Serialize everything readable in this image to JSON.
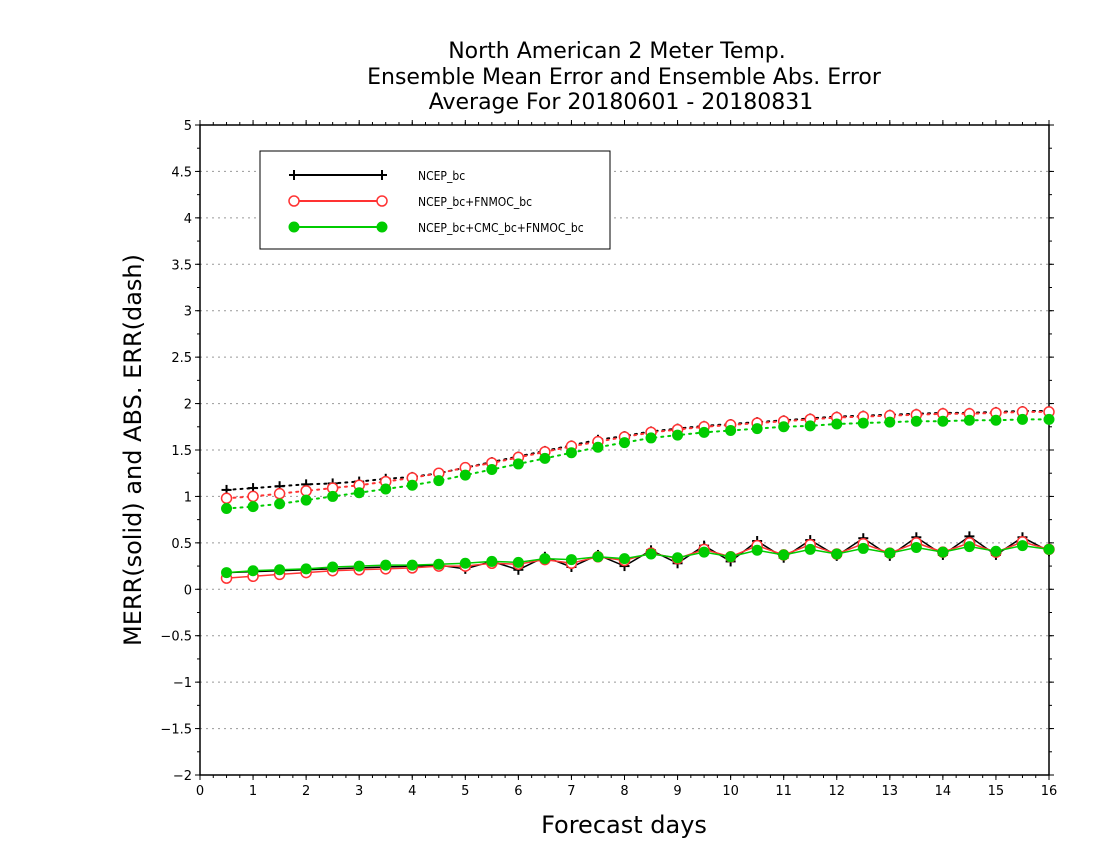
{
  "chart_data": {
    "type": "line",
    "title": [
      "North American 2 Meter Temp.",
      "Ensemble Mean Error and Ensemble Abs. Error",
      "Average For 20180601 - 20180831"
    ],
    "xlabel": "Forecast days",
    "ylabel": "MERR(solid) and ABS. ERR(dash)",
    "xlim": [
      0,
      16
    ],
    "ylim": [
      -2,
      5
    ],
    "xticks": [
      "0",
      "1",
      "2",
      "3",
      "4",
      "5",
      "6",
      "7",
      "8",
      "9",
      "10",
      "11",
      "12",
      "13",
      "14",
      "15",
      "16"
    ],
    "yticks": [
      "-2",
      "-1.5",
      "-1",
      "-0.5",
      "0",
      "0.5",
      "1",
      "1.5",
      "2",
      "2.5",
      "3",
      "3.5",
      "4",
      "4.5",
      "5"
    ],
    "grid": "horizontal dotted",
    "legend_position": "top-left",
    "x": [
      0.5,
      1,
      1.5,
      2,
      2.5,
      3,
      3.5,
      4,
      4.5,
      5,
      5.5,
      6,
      6.5,
      7,
      7.5,
      8,
      8.5,
      9,
      9.5,
      10,
      10.5,
      11,
      11.5,
      12,
      12.5,
      13,
      13.5,
      14,
      14.5,
      15,
      15.5,
      16
    ],
    "series": [
      {
        "name": "NCEP_bc",
        "color": "#000000",
        "marker": "plus",
        "abs_err": [
          1.07,
          1.09,
          1.11,
          1.13,
          1.14,
          1.16,
          1.19,
          1.21,
          1.25,
          1.31,
          1.37,
          1.43,
          1.49,
          1.55,
          1.61,
          1.65,
          1.7,
          1.73,
          1.76,
          1.78,
          1.8,
          1.82,
          1.84,
          1.86,
          1.87,
          1.88,
          1.89,
          1.9,
          1.9,
          1.91,
          1.92,
          1.92
        ],
        "mean_err": [
          0.18,
          0.19,
          0.2,
          0.21,
          0.22,
          0.23,
          0.24,
          0.25,
          0.26,
          0.22,
          0.3,
          0.21,
          0.35,
          0.24,
          0.37,
          0.25,
          0.42,
          0.28,
          0.47,
          0.3,
          0.52,
          0.34,
          0.53,
          0.36,
          0.55,
          0.36,
          0.56,
          0.37,
          0.57,
          0.37,
          0.56,
          0.41
        ]
      },
      {
        "name": "NCEP_bc+FNMOC_bc",
        "color": "#ff3333",
        "marker": "open-circle",
        "abs_err": [
          0.98,
          1.0,
          1.03,
          1.06,
          1.09,
          1.12,
          1.16,
          1.2,
          1.25,
          1.31,
          1.36,
          1.42,
          1.48,
          1.54,
          1.59,
          1.64,
          1.69,
          1.72,
          1.75,
          1.77,
          1.79,
          1.81,
          1.83,
          1.85,
          1.86,
          1.87,
          1.88,
          1.89,
          1.89,
          1.9,
          1.91,
          1.91
        ],
        "mean_err": [
          0.12,
          0.14,
          0.16,
          0.18,
          0.2,
          0.21,
          0.22,
          0.23,
          0.25,
          0.25,
          0.28,
          0.27,
          0.32,
          0.28,
          0.35,
          0.31,
          0.39,
          0.33,
          0.43,
          0.35,
          0.47,
          0.37,
          0.48,
          0.38,
          0.49,
          0.39,
          0.5,
          0.4,
          0.5,
          0.4,
          0.51,
          0.43
        ]
      },
      {
        "name": "NCEP_bc+CMC_bc+FNMOC_bc",
        "color": "#00cc00",
        "marker": "filled-circle",
        "abs_err": [
          0.87,
          0.89,
          0.92,
          0.96,
          1.0,
          1.04,
          1.08,
          1.12,
          1.17,
          1.23,
          1.29,
          1.35,
          1.41,
          1.47,
          1.53,
          1.58,
          1.63,
          1.66,
          1.69,
          1.71,
          1.73,
          1.75,
          1.76,
          1.78,
          1.79,
          1.8,
          1.81,
          1.81,
          1.82,
          1.82,
          1.83,
          1.83
        ],
        "mean_err": [
          0.18,
          0.2,
          0.21,
          0.22,
          0.24,
          0.25,
          0.26,
          0.26,
          0.27,
          0.28,
          0.3,
          0.29,
          0.33,
          0.32,
          0.35,
          0.33,
          0.38,
          0.34,
          0.4,
          0.35,
          0.42,
          0.37,
          0.43,
          0.38,
          0.44,
          0.39,
          0.45,
          0.4,
          0.46,
          0.41,
          0.47,
          0.43
        ]
      }
    ]
  }
}
